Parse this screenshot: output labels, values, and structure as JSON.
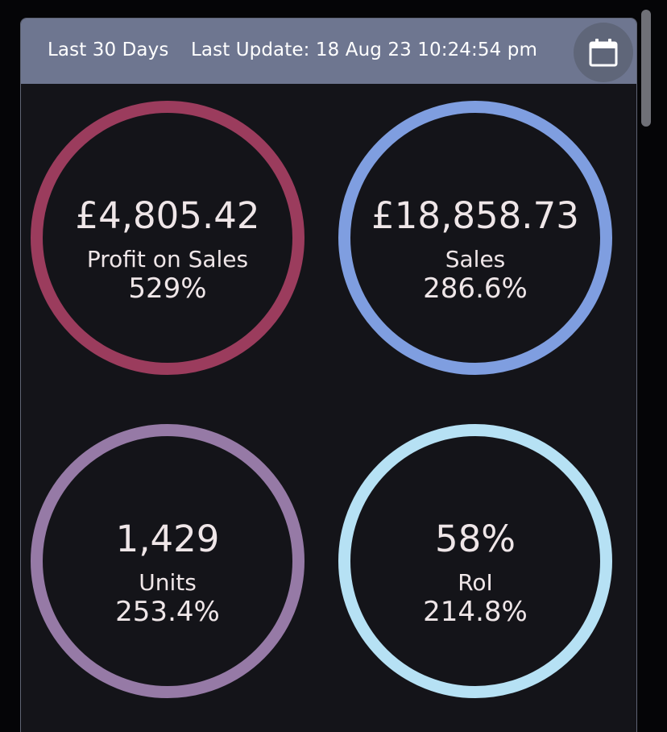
{
  "header": {
    "range_label": "Last 30 Days",
    "last_update": "Last Update: 18 Aug 23 10:24:54 pm",
    "calendar_icon": "calendar-icon"
  },
  "metrics": [
    {
      "value": "£4,805.42",
      "label": "Profit on Sales",
      "change": "529%",
      "ring_color": "#9b3c5d"
    },
    {
      "value": "£18,858.73",
      "label": "Sales",
      "change": "286.6%",
      "ring_color": "#7f9ee0"
    },
    {
      "value": "1,429",
      "label": "Units",
      "change": "253.4%",
      "ring_color": "#967aa6"
    },
    {
      "value": "58%",
      "label": "RoI",
      "change": "214.8%",
      "ring_color": "#b6e1f4"
    }
  ],
  "colors": {
    "background": "#050507",
    "panel": "#141419",
    "header": "#6e7690",
    "text": "#efe6e8"
  }
}
